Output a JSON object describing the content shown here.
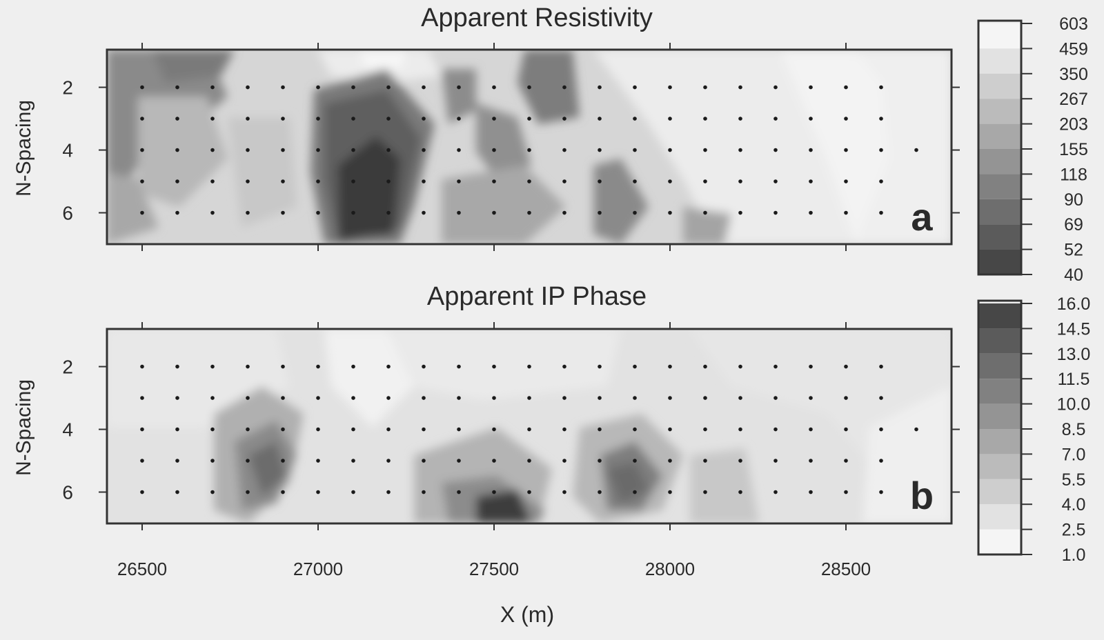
{
  "chart_data": [
    {
      "type": "heatmap",
      "title": "Apparent Resistivity",
      "xlabel": "",
      "ylabel": "N-Spacing",
      "panel_label": "a",
      "x_ticks": [
        26500,
        27000,
        27500,
        28000,
        28500
      ],
      "y_ticks": [
        2,
        4,
        6
      ],
      "xlim": [
        26400,
        28800
      ],
      "ylim": [
        0.8,
        7
      ],
      "colorbar_levels": [
        "603",
        "459",
        "350",
        "267",
        "203",
        "155",
        "118",
        "90",
        "69",
        "52",
        "40"
      ],
      "data_points": {
        "x_start": 26500,
        "x_step": 100,
        "n_values": [
          2,
          3,
          4,
          5,
          6
        ],
        "counts": [
          22,
          22,
          23,
          22,
          22
        ]
      },
      "grid": false,
      "colormap": "gray, dark = low resistivity"
    },
    {
      "type": "heatmap",
      "title": "Apparent IP Phase",
      "xlabel": "X (m)",
      "ylabel": "N-Spacing",
      "panel_label": "b",
      "x_ticks": [
        26500,
        27000,
        27500,
        28000,
        28500
      ],
      "y_ticks": [
        2,
        4,
        6
      ],
      "xlim": [
        26400,
        28800
      ],
      "ylim": [
        0.8,
        7
      ],
      "colorbar_levels": [
        "16.0",
        "14.5",
        "13.0",
        "11.5",
        "10.0",
        "8.5",
        "7.0",
        "5.5",
        "4.0",
        "2.5",
        "1.0"
      ],
      "data_points": {
        "x_start": 26500,
        "x_step": 100,
        "n_values": [
          2,
          3,
          4,
          5,
          6
        ],
        "counts": [
          22,
          22,
          23,
          22,
          22
        ]
      },
      "grid": false,
      "colormap": "gray, dark = high phase"
    }
  ]
}
